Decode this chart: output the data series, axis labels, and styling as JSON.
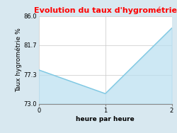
{
  "title": "Evolution du taux d'hygrométrie",
  "title_color": "#ff0000",
  "xlabel": "heure par heure",
  "ylabel": "Taux hygrométrie %",
  "x": [
    0,
    1,
    2
  ],
  "y": [
    78.0,
    74.5,
    84.2
  ],
  "yticks": [
    73.0,
    77.3,
    81.7,
    86.0
  ],
  "xticks": [
    0,
    1,
    2
  ],
  "ylim": [
    73.0,
    86.0
  ],
  "xlim": [
    0,
    2
  ],
  "line_color": "#7ec8e3",
  "fill_color": "#b8dff0",
  "fill_alpha": 0.7,
  "fill_baseline": 73.0,
  "bg_color": "#d8e8f0",
  "plot_bg_color": "#ffffff",
  "title_fontsize": 8,
  "label_fontsize": 6.5,
  "tick_fontsize": 6
}
